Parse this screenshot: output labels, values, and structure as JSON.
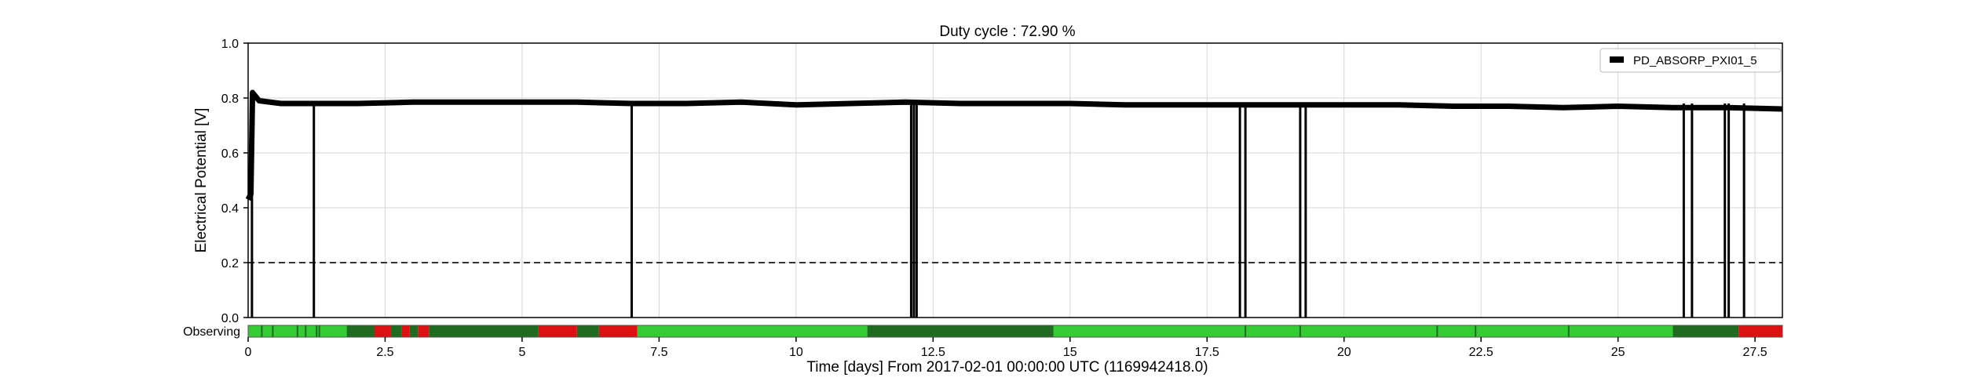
{
  "chart_data": {
    "type": "line",
    "title": "Duty cycle : 72.90 %",
    "xlabel": "Time [days] From 2017-02-01 00:00:00 UTC (1169942418.0)",
    "ylabel": "Electrical Potential [V]",
    "xlim": [
      0,
      28
    ],
    "ylim": [
      0.0,
      1.0
    ],
    "xticks": [
      0,
      2.5,
      5,
      7.5,
      10,
      12.5,
      15,
      17.5,
      20,
      22.5,
      25,
      27.5
    ],
    "xtick_labels": [
      "0",
      "2.5",
      "5",
      "7.5",
      "10",
      "12.5",
      "15",
      "17.5",
      "20",
      "22.5",
      "25",
      "27.5"
    ],
    "yticks": [
      0.0,
      0.2,
      0.4,
      0.6,
      0.8,
      1.0
    ],
    "ytick_labels": [
      "0.0",
      "0.2",
      "0.4",
      "0.6",
      "0.8",
      "1.0"
    ],
    "grid": true,
    "legend_position": "top-right",
    "series": [
      {
        "name": "PD_ABSORP_PXI01_5",
        "color": "#000000",
        "baseline": [
          [
            0.0,
            0.43
          ],
          [
            0.05,
            0.45
          ],
          [
            0.08,
            0.82
          ],
          [
            0.2,
            0.79
          ],
          [
            0.6,
            0.78
          ],
          [
            1.0,
            0.78
          ],
          [
            2.0,
            0.78
          ],
          [
            3.0,
            0.785
          ],
          [
            4.0,
            0.785
          ],
          [
            5.0,
            0.785
          ],
          [
            6.0,
            0.785
          ],
          [
            7.0,
            0.78
          ],
          [
            8.0,
            0.78
          ],
          [
            9.0,
            0.785
          ],
          [
            10.0,
            0.775
          ],
          [
            11.0,
            0.78
          ],
          [
            12.0,
            0.785
          ],
          [
            13.0,
            0.78
          ],
          [
            14.0,
            0.78
          ],
          [
            15.0,
            0.78
          ],
          [
            16.0,
            0.775
          ],
          [
            17.0,
            0.775
          ],
          [
            18.0,
            0.775
          ],
          [
            19.0,
            0.775
          ],
          [
            20.0,
            0.775
          ],
          [
            21.0,
            0.775
          ],
          [
            22.0,
            0.77
          ],
          [
            23.0,
            0.77
          ],
          [
            24.0,
            0.765
          ],
          [
            25.0,
            0.77
          ],
          [
            26.0,
            0.765
          ],
          [
            27.0,
            0.765
          ],
          [
            28.0,
            0.76
          ]
        ],
        "dropouts": [
          0.07,
          1.2,
          7.0,
          12.1,
          12.15,
          12.2,
          18.1,
          18.2,
          19.2,
          19.3,
          26.2,
          26.35,
          26.95,
          27.02,
          27.3
        ]
      }
    ],
    "threshold": {
      "value": 0.2,
      "style": "dashed"
    },
    "state_bar": {
      "label": "Observing",
      "colors": {
        "on": "#33cc33",
        "dense": "#1f6b1f",
        "off": "#dd1111"
      },
      "segments": [
        [
          0.0,
          1.8,
          "on"
        ],
        [
          1.8,
          2.3,
          "dense"
        ],
        [
          2.3,
          2.6,
          "off"
        ],
        [
          2.6,
          2.8,
          "dense"
        ],
        [
          2.8,
          2.95,
          "off"
        ],
        [
          2.95,
          3.1,
          "dense"
        ],
        [
          3.1,
          3.3,
          "off"
        ],
        [
          3.3,
          5.3,
          "dense"
        ],
        [
          5.3,
          6.0,
          "off"
        ],
        [
          6.0,
          6.4,
          "dense"
        ],
        [
          6.4,
          7.1,
          "off"
        ],
        [
          7.1,
          11.3,
          "on"
        ],
        [
          11.3,
          14.7,
          "dense"
        ],
        [
          14.7,
          26.0,
          "on"
        ],
        [
          26.0,
          27.2,
          "dense"
        ],
        [
          27.2,
          28.0,
          "off"
        ]
      ],
      "ticks": [
        0.25,
        0.45,
        0.9,
        1.05,
        1.25,
        1.3,
        4.5,
        5.1,
        11.4,
        12.1,
        13.5,
        14.0,
        18.2,
        19.2,
        21.7,
        22.4,
        24.1
      ]
    }
  }
}
